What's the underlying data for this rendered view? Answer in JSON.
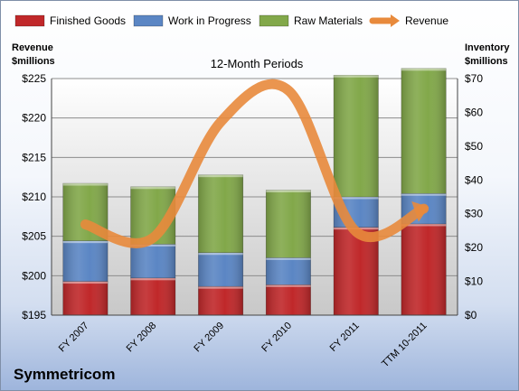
{
  "company": "Symmetricom",
  "chart_data": {
    "type": "bar",
    "subtitle": "12-Month Periods",
    "stacked": true,
    "categories": [
      "FY 2007",
      "FY 2008",
      "FY 2009",
      "FY 2010",
      "FY 2011",
      "TTM 10-2011"
    ],
    "series": [
      {
        "name": "Finished Goods",
        "axis": "right",
        "color": "#c0282a",
        "values": [
          10,
          11,
          8.5,
          9,
          26,
          27
        ]
      },
      {
        "name": "Work in Progress",
        "axis": "right",
        "color": "#5b86c4",
        "values": [
          12,
          10,
          10,
          8,
          9,
          9
        ]
      },
      {
        "name": "Raw Materials",
        "axis": "right",
        "color": "#82a84a",
        "values": [
          17,
          17,
          23,
          20,
          36,
          37
        ]
      },
      {
        "name": "Revenue",
        "type": "line",
        "axis": "left",
        "color": "#e88a3c",
        "values": [
          206.5,
          204.8,
          219.5,
          223.5,
          205.6,
          208.5
        ]
      }
    ],
    "y_left": {
      "label_line1": "Revenue",
      "label_line2": "$millions",
      "min": 195,
      "max": 225,
      "step": 5,
      "tick_prefix": "$"
    },
    "y_right": {
      "label_line1": "Inventory",
      "label_line2": "$millions",
      "min": 0,
      "max": 70,
      "step": 10,
      "tick_prefix": "$"
    },
    "legend_position": "top",
    "grid": true
  }
}
